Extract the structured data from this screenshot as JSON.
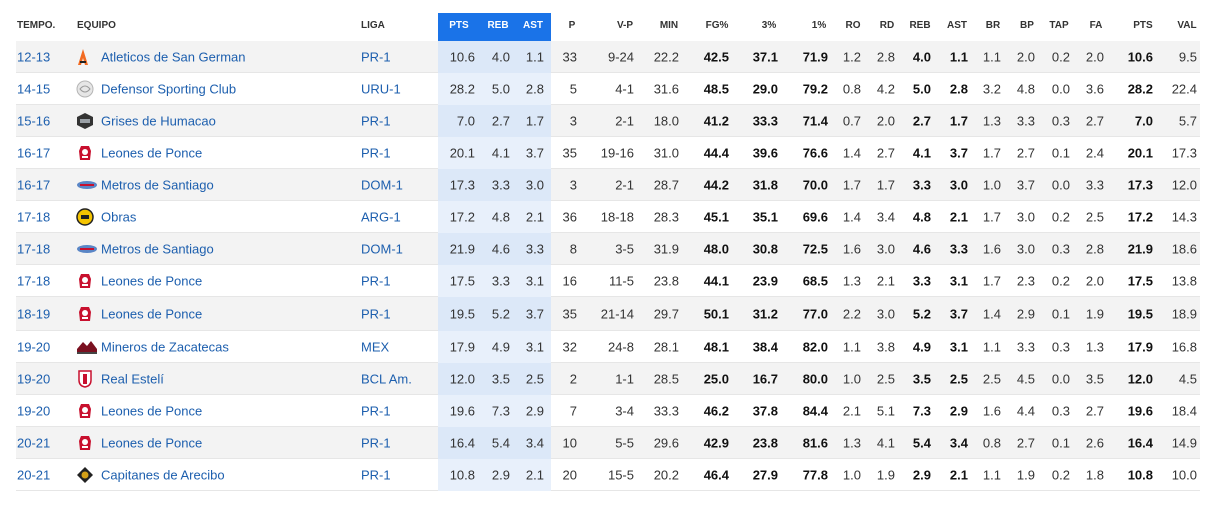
{
  "columns": [
    {
      "key": "temp",
      "label": "TEMPO."
    },
    {
      "key": "team",
      "label": "EQUIPO"
    },
    {
      "key": "liga",
      "label": "LIGA"
    },
    {
      "key": "pts_avg",
      "label": "PTS"
    },
    {
      "key": "reb_avg",
      "label": "REB"
    },
    {
      "key": "ast_avg",
      "label": "AST"
    },
    {
      "key": "p",
      "label": "P"
    },
    {
      "key": "vp",
      "label": "V-P"
    },
    {
      "key": "min",
      "label": "MIN"
    },
    {
      "key": "fg",
      "label": "FG%"
    },
    {
      "key": "three",
      "label": "3%"
    },
    {
      "key": "ft",
      "label": "1%"
    },
    {
      "key": "ro",
      "label": "RO"
    },
    {
      "key": "rd",
      "label": "RD"
    },
    {
      "key": "reb",
      "label": "REB"
    },
    {
      "key": "ast",
      "label": "AST"
    },
    {
      "key": "br",
      "label": "BR"
    },
    {
      "key": "bp",
      "label": "BP"
    },
    {
      "key": "tap",
      "label": "TAP"
    },
    {
      "key": "fa",
      "label": "FA"
    },
    {
      "key": "pts",
      "label": "PTS"
    },
    {
      "key": "val",
      "label": "VAL"
    }
  ],
  "colors": {
    "highlight_header": "#1a73e8",
    "highlight_odd": "#dce8f8",
    "highlight_even": "#e8f0fb",
    "row_alt": "#f3f3f3",
    "link": "#1d5fae"
  },
  "rows": [
    {
      "temp": "12-13",
      "team": "Atleticos de San German",
      "logo": "atleticos-logo-icon",
      "liga": "PR-1",
      "pts_avg": "10.6",
      "reb_avg": "4.0",
      "ast_avg": "1.1",
      "p": "33",
      "vp": "9-24",
      "min": "22.2",
      "fg": "42.5",
      "three": "37.1",
      "ft": "71.9",
      "ro": "1.2",
      "rd": "2.8",
      "reb": "4.0",
      "ast": "1.1",
      "br": "1.1",
      "bp": "2.0",
      "tap": "0.2",
      "fa": "2.0",
      "pts": "10.6",
      "val": "9.5"
    },
    {
      "temp": "14-15",
      "team": "Defensor Sporting Club",
      "logo": "defensor-logo-icon",
      "liga": "URU-1",
      "pts_avg": "28.2",
      "reb_avg": "5.0",
      "ast_avg": "2.8",
      "p": "5",
      "vp": "4-1",
      "min": "31.6",
      "fg": "48.5",
      "three": "29.0",
      "ft": "79.2",
      "ro": "0.8",
      "rd": "4.2",
      "reb": "5.0",
      "ast": "2.8",
      "br": "3.2",
      "bp": "4.8",
      "tap": "0.0",
      "fa": "3.6",
      "pts": "28.2",
      "val": "22.4"
    },
    {
      "temp": "15-16",
      "team": "Grises de Humacao",
      "logo": "grises-logo-icon",
      "liga": "PR-1",
      "pts_avg": "7.0",
      "reb_avg": "2.7",
      "ast_avg": "1.7",
      "p": "3",
      "vp": "2-1",
      "min": "18.0",
      "fg": "41.2",
      "three": "33.3",
      "ft": "71.4",
      "ro": "0.7",
      "rd": "2.0",
      "reb": "2.7",
      "ast": "1.7",
      "br": "1.3",
      "bp": "3.3",
      "tap": "0.3",
      "fa": "2.7",
      "pts": "7.0",
      "val": "5.7"
    },
    {
      "temp": "16-17",
      "team": "Leones de Ponce",
      "logo": "leones-logo-icon",
      "liga": "PR-1",
      "pts_avg": "20.1",
      "reb_avg": "4.1",
      "ast_avg": "3.7",
      "p": "35",
      "vp": "19-16",
      "min": "31.0",
      "fg": "44.4",
      "three": "39.6",
      "ft": "76.6",
      "ro": "1.4",
      "rd": "2.7",
      "reb": "4.1",
      "ast": "3.7",
      "br": "1.7",
      "bp": "2.7",
      "tap": "0.1",
      "fa": "2.4",
      "pts": "20.1",
      "val": "17.3"
    },
    {
      "temp": "16-17",
      "team": "Metros de Santiago",
      "logo": "metros-logo-icon",
      "liga": "DOM-1",
      "pts_avg": "17.3",
      "reb_avg": "3.3",
      "ast_avg": "3.0",
      "p": "3",
      "vp": "2-1",
      "min": "28.7",
      "fg": "44.2",
      "three": "31.8",
      "ft": "70.0",
      "ro": "1.7",
      "rd": "1.7",
      "reb": "3.3",
      "ast": "3.0",
      "br": "1.0",
      "bp": "3.7",
      "tap": "0.0",
      "fa": "3.3",
      "pts": "17.3",
      "val": "12.0"
    },
    {
      "temp": "17-18",
      "team": "Obras",
      "logo": "obras-logo-icon",
      "liga": "ARG-1",
      "pts_avg": "17.2",
      "reb_avg": "4.8",
      "ast_avg": "2.1",
      "p": "36",
      "vp": "18-18",
      "min": "28.3",
      "fg": "45.1",
      "three": "35.1",
      "ft": "69.6",
      "ro": "1.4",
      "rd": "3.4",
      "reb": "4.8",
      "ast": "2.1",
      "br": "1.7",
      "bp": "3.0",
      "tap": "0.2",
      "fa": "2.5",
      "pts": "17.2",
      "val": "14.3"
    },
    {
      "temp": "17-18",
      "team": "Metros de Santiago",
      "logo": "metros-logo-icon",
      "liga": "DOM-1",
      "pts_avg": "21.9",
      "reb_avg": "4.6",
      "ast_avg": "3.3",
      "p": "8",
      "vp": "3-5",
      "min": "31.9",
      "fg": "48.0",
      "three": "30.8",
      "ft": "72.5",
      "ro": "1.6",
      "rd": "3.0",
      "reb": "4.6",
      "ast": "3.3",
      "br": "1.6",
      "bp": "3.0",
      "tap": "0.3",
      "fa": "2.8",
      "pts": "21.9",
      "val": "18.6"
    },
    {
      "temp": "17-18",
      "team": "Leones de Ponce",
      "logo": "leones-logo-icon",
      "liga": "PR-1",
      "pts_avg": "17.5",
      "reb_avg": "3.3",
      "ast_avg": "3.1",
      "p": "16",
      "vp": "11-5",
      "min": "23.8",
      "fg": "44.1",
      "three": "23.9",
      "ft": "68.5",
      "ro": "1.3",
      "rd": "2.1",
      "reb": "3.3",
      "ast": "3.1",
      "br": "1.7",
      "bp": "2.3",
      "tap": "0.2",
      "fa": "2.0",
      "pts": "17.5",
      "val": "13.8"
    },
    {
      "temp": "18-19",
      "team": "Leones de Ponce",
      "logo": "leones-logo-icon",
      "liga": "PR-1",
      "pts_avg": "19.5",
      "reb_avg": "5.2",
      "ast_avg": "3.7",
      "p": "35",
      "vp": "21-14",
      "min": "29.7",
      "fg": "50.1",
      "three": "31.2",
      "ft": "77.0",
      "ro": "2.2",
      "rd": "3.0",
      "reb": "5.2",
      "ast": "3.7",
      "br": "1.4",
      "bp": "2.9",
      "tap": "0.1",
      "fa": "1.9",
      "pts": "19.5",
      "val": "18.9"
    },
    {
      "temp": "19-20",
      "team": "Mineros de Zacatecas",
      "logo": "mineros-logo-icon",
      "liga": "MEX",
      "pts_avg": "17.9",
      "reb_avg": "4.9",
      "ast_avg": "3.1",
      "p": "32",
      "vp": "24-8",
      "min": "28.1",
      "fg": "48.1",
      "three": "38.4",
      "ft": "82.0",
      "ro": "1.1",
      "rd": "3.8",
      "reb": "4.9",
      "ast": "3.1",
      "br": "1.1",
      "bp": "3.3",
      "tap": "0.3",
      "fa": "1.3",
      "pts": "17.9",
      "val": "16.8"
    },
    {
      "temp": "19-20",
      "team": "Real Estelí",
      "logo": "real-esteli-logo-icon",
      "liga": "BCL Am.",
      "pts_avg": "12.0",
      "reb_avg": "3.5",
      "ast_avg": "2.5",
      "p": "2",
      "vp": "1-1",
      "min": "28.5",
      "fg": "25.0",
      "three": "16.7",
      "ft": "80.0",
      "ro": "1.0",
      "rd": "2.5",
      "reb": "3.5",
      "ast": "2.5",
      "br": "2.5",
      "bp": "4.5",
      "tap": "0.0",
      "fa": "3.5",
      "pts": "12.0",
      "val": "4.5"
    },
    {
      "temp": "19-20",
      "team": "Leones de Ponce",
      "logo": "leones-logo-icon",
      "liga": "PR-1",
      "pts_avg": "19.6",
      "reb_avg": "7.3",
      "ast_avg": "2.9",
      "p": "7",
      "vp": "3-4",
      "min": "33.3",
      "fg": "46.2",
      "three": "37.8",
      "ft": "84.4",
      "ro": "2.1",
      "rd": "5.1",
      "reb": "7.3",
      "ast": "2.9",
      "br": "1.6",
      "bp": "4.4",
      "tap": "0.3",
      "fa": "2.7",
      "pts": "19.6",
      "val": "18.4"
    },
    {
      "temp": "20-21",
      "team": "Leones de Ponce",
      "logo": "leones-logo-icon",
      "liga": "PR-1",
      "pts_avg": "16.4",
      "reb_avg": "5.4",
      "ast_avg": "3.4",
      "p": "10",
      "vp": "5-5",
      "min": "29.6",
      "fg": "42.9",
      "three": "23.8",
      "ft": "81.6",
      "ro": "1.3",
      "rd": "4.1",
      "reb": "5.4",
      "ast": "3.4",
      "br": "0.8",
      "bp": "2.7",
      "tap": "0.1",
      "fa": "2.6",
      "pts": "16.4",
      "val": "14.9"
    },
    {
      "temp": "20-21",
      "team": "Capitanes de Arecibo",
      "logo": "capitanes-logo-icon",
      "liga": "PR-1",
      "pts_avg": "10.8",
      "reb_avg": "2.9",
      "ast_avg": "2.1",
      "p": "20",
      "vp": "15-5",
      "min": "20.2",
      "fg": "46.4",
      "three": "27.9",
      "ft": "77.8",
      "ro": "1.0",
      "rd": "1.9",
      "reb": "2.9",
      "ast": "2.1",
      "br": "1.1",
      "bp": "1.9",
      "tap": "0.2",
      "fa": "1.8",
      "pts": "10.8",
      "val": "10.0"
    }
  ]
}
